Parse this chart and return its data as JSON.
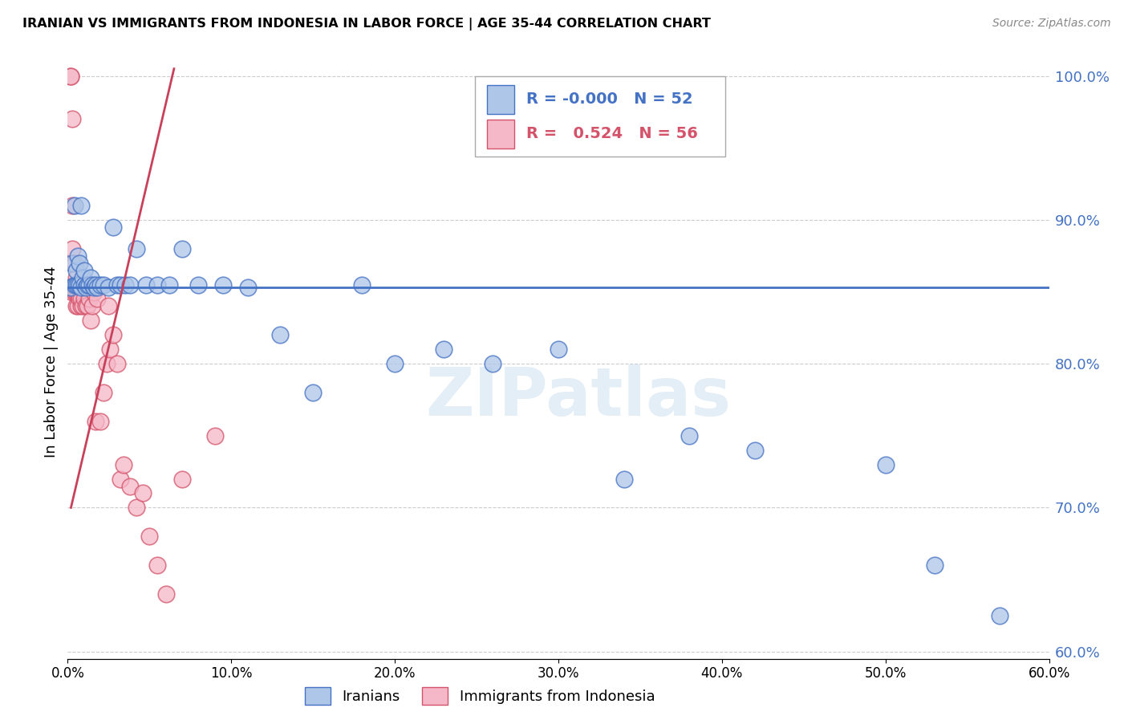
{
  "title": "IRANIAN VS IMMIGRANTS FROM INDONESIA IN LABOR FORCE | AGE 35-44 CORRELATION CHART",
  "source": "Source: ZipAtlas.com",
  "ylabel": "In Labor Force | Age 35-44",
  "legend_label1": "Iranians",
  "legend_label2": "Immigrants from Indonesia",
  "R1": "-0.000",
  "N1": "52",
  "R2": "0.524",
  "N2": "56",
  "color1": "#aec6e8",
  "color2": "#f5b8c8",
  "edge_color1": "#4472c4",
  "edge_color2": "#d4536a",
  "line_color1": "#4472c4",
  "line_color2": "#c9405a",
  "xlim": [
    0.0,
    0.6
  ],
  "ylim": [
    0.595,
    1.008
  ],
  "yticks": [
    0.6,
    0.7,
    0.8,
    0.9,
    1.0
  ],
  "xticks": [
    0.0,
    0.1,
    0.2,
    0.3,
    0.4,
    0.5,
    0.6
  ],
  "blue_hline": 0.853,
  "watermark": "ZIPatlas",
  "iranians_x": [
    0.002,
    0.003,
    0.004,
    0.004,
    0.005,
    0.005,
    0.006,
    0.006,
    0.007,
    0.007,
    0.008,
    0.008,
    0.009,
    0.01,
    0.01,
    0.011,
    0.012,
    0.013,
    0.014,
    0.015,
    0.016,
    0.017,
    0.018,
    0.02,
    0.022,
    0.025,
    0.028,
    0.03,
    0.032,
    0.035,
    0.038,
    0.042,
    0.048,
    0.055,
    0.062,
    0.07,
    0.08,
    0.095,
    0.11,
    0.13,
    0.15,
    0.18,
    0.2,
    0.23,
    0.26,
    0.3,
    0.34,
    0.38,
    0.42,
    0.5,
    0.53,
    0.57
  ],
  "iranians_y": [
    0.853,
    0.87,
    0.91,
    0.855,
    0.855,
    0.865,
    0.855,
    0.875,
    0.855,
    0.87,
    0.91,
    0.853,
    0.86,
    0.855,
    0.865,
    0.853,
    0.855,
    0.855,
    0.86,
    0.855,
    0.853,
    0.855,
    0.853,
    0.855,
    0.855,
    0.853,
    0.895,
    0.855,
    0.855,
    0.855,
    0.855,
    0.88,
    0.855,
    0.855,
    0.855,
    0.88,
    0.855,
    0.855,
    0.853,
    0.82,
    0.78,
    0.855,
    0.8,
    0.81,
    0.8,
    0.81,
    0.72,
    0.75,
    0.74,
    0.73,
    0.66,
    0.625
  ],
  "indonesia_x": [
    0.002,
    0.002,
    0.003,
    0.003,
    0.003,
    0.003,
    0.004,
    0.004,
    0.004,
    0.004,
    0.005,
    0.005,
    0.005,
    0.005,
    0.005,
    0.006,
    0.006,
    0.006,
    0.006,
    0.007,
    0.007,
    0.007,
    0.008,
    0.008,
    0.008,
    0.009,
    0.009,
    0.01,
    0.01,
    0.011,
    0.011,
    0.012,
    0.012,
    0.013,
    0.014,
    0.015,
    0.016,
    0.017,
    0.018,
    0.02,
    0.022,
    0.024,
    0.025,
    0.026,
    0.028,
    0.03,
    0.032,
    0.034,
    0.038,
    0.042,
    0.046,
    0.05,
    0.055,
    0.06,
    0.07,
    0.09
  ],
  "indonesia_y": [
    1.0,
    1.0,
    0.88,
    0.97,
    0.91,
    0.85,
    0.855,
    0.855,
    0.87,
    0.85,
    0.855,
    0.84,
    0.85,
    0.86,
    0.855,
    0.85,
    0.855,
    0.84,
    0.855,
    0.845,
    0.853,
    0.855,
    0.84,
    0.845,
    0.855,
    0.855,
    0.84,
    0.853,
    0.845,
    0.84,
    0.855,
    0.84,
    0.855,
    0.845,
    0.83,
    0.84,
    0.85,
    0.76,
    0.845,
    0.76,
    0.78,
    0.8,
    0.84,
    0.81,
    0.82,
    0.8,
    0.72,
    0.73,
    0.715,
    0.7,
    0.71,
    0.68,
    0.66,
    0.64,
    0.72,
    0.75
  ],
  "indo_trend_x": [
    0.002,
    0.065
  ],
  "indo_trend_y": [
    0.7,
    1.005
  ],
  "iran_hline_y": 0.853,
  "title_fontsize": 11.5,
  "axis_label_color": "#4472c4",
  "tick_label_color": "#4472c4",
  "grid_color": "#cccccc",
  "background_color": "#ffffff"
}
